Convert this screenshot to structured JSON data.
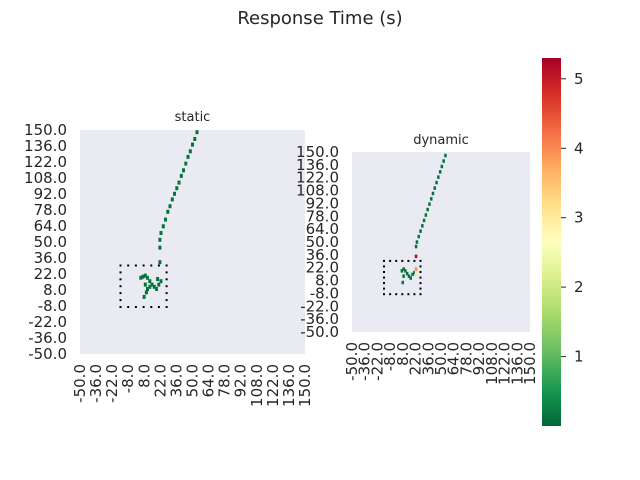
{
  "chart_data": {
    "type": "heatmap",
    "title": "Response Time (s)",
    "colormap": "RdYlGn_r",
    "colorbar": {
      "min": 0.0,
      "max": 5.3,
      "ticks": [
        "1",
        "2",
        "3",
        "4",
        "5"
      ]
    },
    "background_color": "#eaeaf2",
    "panels": [
      {
        "title": "static",
        "xlim": [
          -50,
          150
        ],
        "ylim": [
          -50,
          150
        ],
        "tick_labels": [
          "-50.0",
          "-36.0",
          "-22.0",
          "-8.0",
          "8.0",
          "22.0",
          "36.0",
          "50.0",
          "64.0",
          "78.0",
          "92.0",
          "108.0",
          "122.0",
          "136.0",
          "150.0"
        ],
        "track": [
          {
            "x": 4,
            "y": 18,
            "v": 0.15
          },
          {
            "x": 6,
            "y": 19,
            "v": 0.1
          },
          {
            "x": 8,
            "y": 20,
            "v": 0.1
          },
          {
            "x": 10,
            "y": 18,
            "v": 0.2
          },
          {
            "x": 12,
            "y": 15,
            "v": 0.1
          },
          {
            "x": 14,
            "y": 12,
            "v": 0.15
          },
          {
            "x": 16,
            "y": 10,
            "v": 0.1
          },
          {
            "x": 18,
            "y": 8,
            "v": 0.2
          },
          {
            "x": 20,
            "y": 12,
            "v": 0.1
          },
          {
            "x": 22,
            "y": 15,
            "v": 0.15
          },
          {
            "x": 8,
            "y": 12,
            "v": 0.1
          },
          {
            "x": 10,
            "y": 8,
            "v": 0.1
          },
          {
            "x": 12,
            "y": 10,
            "v": 0.2
          },
          {
            "x": 9,
            "y": 5,
            "v": 0.1
          },
          {
            "x": 7,
            "y": 1,
            "v": 0.15
          },
          {
            "x": 19,
            "y": 17,
            "v": 0.1
          },
          {
            "x": 21,
            "y": 32,
            "v": 0.1
          },
          {
            "x": 21,
            "y": 45,
            "v": 0.1
          },
          {
            "x": 21,
            "y": 52,
            "v": 0.15
          },
          {
            "x": 22,
            "y": 58,
            "v": 0.1
          },
          {
            "x": 24,
            "y": 64,
            "v": 0.1
          },
          {
            "x": 26,
            "y": 70,
            "v": 0.15
          },
          {
            "x": 28,
            "y": 77,
            "v": 0.1
          },
          {
            "x": 30,
            "y": 82,
            "v": 0.1
          },
          {
            "x": 32,
            "y": 88,
            "v": 0.1
          },
          {
            "x": 34,
            "y": 93,
            "v": 0.15
          },
          {
            "x": 36,
            "y": 98,
            "v": 0.1
          },
          {
            "x": 38,
            "y": 103,
            "v": 0.1
          },
          {
            "x": 40,
            "y": 109,
            "v": 0.1
          },
          {
            "x": 42,
            "y": 114,
            "v": 0.1
          },
          {
            "x": 44,
            "y": 120,
            "v": 0.15
          },
          {
            "x": 46,
            "y": 126,
            "v": 0.1
          },
          {
            "x": 48,
            "y": 131,
            "v": 0.1
          },
          {
            "x": 50,
            "y": 137,
            "v": 0.1
          },
          {
            "x": 52,
            "y": 142,
            "v": 0.15
          },
          {
            "x": 54,
            "y": 148,
            "v": 0.1
          }
        ],
        "box_x": [
          -14,
          27
        ],
        "box_y": [
          -8,
          29
        ]
      },
      {
        "title": "dynamic",
        "xlim": [
          -50,
          150
        ],
        "ylim": [
          -50,
          150
        ],
        "tick_labels": [
          "-50.0",
          "-36.0",
          "-22.0",
          "-8.0",
          "8.0",
          "22.0",
          "36.0",
          "50.0",
          "64.0",
          "78.0",
          "92.0",
          "108.0",
          "122.0",
          "136.0",
          "150.0"
        ],
        "track": [
          {
            "x": 6,
            "y": 18,
            "v": 0.15
          },
          {
            "x": 8,
            "y": 20,
            "v": 0.1
          },
          {
            "x": 10,
            "y": 18,
            "v": 0.2
          },
          {
            "x": 12,
            "y": 15,
            "v": 0.1
          },
          {
            "x": 14,
            "y": 12,
            "v": 0.15
          },
          {
            "x": 16,
            "y": 10,
            "v": 0.1
          },
          {
            "x": 18,
            "y": 14,
            "v": 0.2
          },
          {
            "x": 20,
            "y": 16,
            "v": 0.1
          },
          {
            "x": 8,
            "y": 12,
            "v": 0.1
          },
          {
            "x": 7,
            "y": 5,
            "v": 0.15
          },
          {
            "x": 22,
            "y": 34,
            "v": 5.2
          },
          {
            "x": 22,
            "y": 20,
            "v": 4.0
          },
          {
            "x": 22,
            "y": 16,
            "v": 3.0
          },
          {
            "x": 22,
            "y": 45,
            "v": 0.1
          },
          {
            "x": 23,
            "y": 50,
            "v": 0.1
          },
          {
            "x": 25,
            "y": 56,
            "v": 0.15
          },
          {
            "x": 27,
            "y": 62,
            "v": 0.1
          },
          {
            "x": 29,
            "y": 68,
            "v": 0.1
          },
          {
            "x": 31,
            "y": 74,
            "v": 0.15
          },
          {
            "x": 33,
            "y": 80,
            "v": 0.1
          },
          {
            "x": 35,
            "y": 86,
            "v": 0.1
          },
          {
            "x": 37,
            "y": 92,
            "v": 0.1
          },
          {
            "x": 39,
            "y": 98,
            "v": 0.15
          },
          {
            "x": 41,
            "y": 104,
            "v": 0.1
          },
          {
            "x": 43,
            "y": 110,
            "v": 0.1
          },
          {
            "x": 45,
            "y": 116,
            "v": 0.1
          },
          {
            "x": 47,
            "y": 122,
            "v": 0.15
          },
          {
            "x": 49,
            "y": 128,
            "v": 0.1
          },
          {
            "x": 51,
            "y": 134,
            "v": 0.1
          },
          {
            "x": 53,
            "y": 140,
            "v": 0.1
          },
          {
            "x": 55,
            "y": 146,
            "v": 0.1
          }
        ],
        "box_x": [
          -14,
          27
        ],
        "box_y": [
          -8,
          29
        ]
      }
    ]
  }
}
